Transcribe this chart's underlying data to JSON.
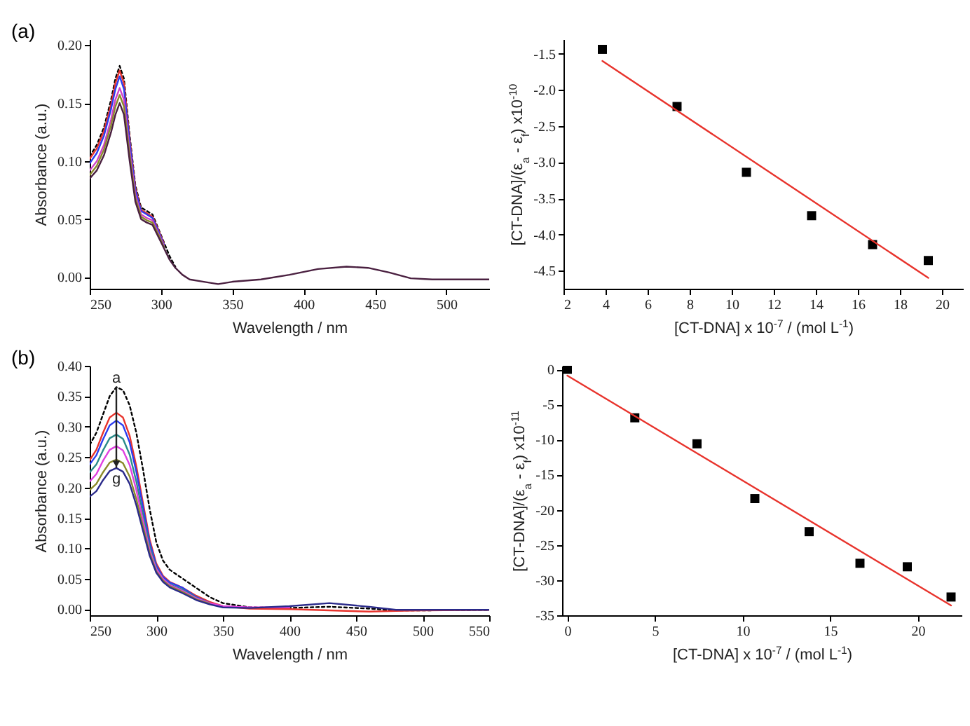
{
  "chart_data": [
    {
      "type": "line",
      "xlabel": "Wavelength / nm",
      "ylabel": "Absorbance (a.u.)",
      "annotations": [
        "(a)"
      ],
      "xlim": [
        250,
        530
      ],
      "xticks": [
        250,
        300,
        350,
        400,
        450,
        500
      ],
      "ylim": [
        -0.01,
        0.205
      ],
      "yticks": [
        {
          "value": 0,
          "label": "0.00"
        },
        {
          "value": 0.05,
          "label": "0.05"
        },
        {
          "value": 0.1,
          "label": "0.10"
        },
        {
          "value": 0.15,
          "label": "0.15"
        },
        {
          "value": 0.2,
          "label": "0.20"
        }
      ],
      "x": [
        250,
        255,
        260,
        265,
        268,
        271,
        274,
        278,
        282,
        286,
        290,
        294,
        298,
        302,
        306,
        310,
        315,
        320,
        330,
        340,
        350,
        370,
        390,
        410,
        430,
        445,
        460,
        475,
        490,
        510,
        530
      ],
      "series": [
        {
          "color": "#000000",
          "line_style": "dotted",
          "values": [
            0.104,
            0.114,
            0.129,
            0.153,
            0.171,
            0.182,
            0.171,
            0.122,
            0.079,
            0.06,
            0.057,
            0.054,
            0.042,
            0.03,
            0.018,
            0.009,
            null,
            null,
            null,
            null,
            null,
            null,
            null,
            null,
            null,
            null,
            null,
            null,
            null,
            null,
            null
          ]
        },
        {
          "color": "#e8332c",
          "values": [
            0.102,
            0.111,
            0.126,
            0.149,
            0.167,
            0.178,
            0.167,
            0.119,
            0.077,
            0.058,
            0.055,
            0.052,
            0.041,
            0.029,
            null,
            null,
            null,
            null,
            null,
            null,
            null,
            null,
            null,
            null,
            null,
            null,
            null,
            null,
            null,
            null,
            null
          ]
        },
        {
          "color": "#2b3cf0",
          "values": [
            0.098,
            0.107,
            0.122,
            0.145,
            0.162,
            0.173,
            0.162,
            0.116,
            0.075,
            0.057,
            0.054,
            0.051,
            0.04,
            0.028,
            null,
            null,
            null,
            null,
            null,
            null,
            null,
            null,
            null,
            null,
            null,
            null,
            null,
            null,
            null,
            null,
            null
          ]
        },
        {
          "color": "#d040c8",
          "values": [
            0.092,
            0.1,
            0.114,
            0.136,
            0.153,
            0.163,
            0.153,
            0.109,
            0.071,
            0.054,
            0.051,
            0.049,
            0.038,
            0.027,
            null,
            null,
            null,
            null,
            null,
            null,
            null,
            null,
            null,
            null,
            null,
            null,
            null,
            null,
            null,
            null,
            null
          ]
        },
        {
          "color": "#8a8a2a",
          "values": [
            0.088,
            0.096,
            0.11,
            0.131,
            0.147,
            0.157,
            0.147,
            0.105,
            0.068,
            0.052,
            0.049,
            0.047,
            0.037,
            0.026,
            null,
            null,
            null,
            null,
            null,
            null,
            null,
            null,
            null,
            null,
            null,
            null,
            null,
            null,
            null,
            null,
            null
          ]
        },
        {
          "color": "#4a2040",
          "values": [
            0.085,
            0.092,
            0.105,
            0.125,
            0.14,
            0.15,
            0.14,
            0.1,
            0.065,
            0.05,
            0.047,
            0.045,
            0.035,
            0.025,
            0.015,
            0.008,
            0.002,
            -0.002,
            -0.004,
            -0.006,
            -0.004,
            -0.002,
            0.002,
            0.007,
            0.009,
            0.008,
            0.004,
            -0.001,
            -0.002,
            -0.002,
            -0.002
          ]
        }
      ]
    },
    {
      "type": "scatter",
      "marker": "square",
      "xlabel": "[CT-DNA] x 10$^{-7}$ / (mol L$^{-1}$)",
      "ylabel": "[CT-DNA]/(ε$_{a}$ - ε$_{f}$) x10$^{-10}$",
      "xlim": [
        2,
        21
      ],
      "xticks": [
        2,
        4,
        6,
        8,
        10,
        12,
        14,
        16,
        18,
        20
      ],
      "ylim": [
        -4.75,
        -1.3
      ],
      "yticks": [
        -4.5,
        {
          "value": -4,
          "label": "-4.0"
        },
        -3.5,
        {
          "value": -3,
          "label": "-3.0"
        },
        -2.5,
        {
          "value": -2,
          "label": "-2.0"
        },
        -1.5
      ],
      "x": [
        3.85,
        7.4,
        10.7,
        13.8,
        16.7,
        19.35
      ],
      "series": [
        {
          "color": "#000000",
          "values": [
            -1.44,
            -2.23,
            -3.14,
            -3.74,
            -4.14,
            -4.36
          ]
        },
        {
          "type": "line",
          "marker": "none",
          "color": "#e8332c",
          "x": [
            3.85,
            19.35
          ],
          "values": [
            -1.6,
            -4.6
          ]
        }
      ]
    },
    {
      "type": "line",
      "xlabel": "Wavelength / nm",
      "ylabel": "Absorbance (a.u.)",
      "annotations": [
        "(b)",
        {
          "text": "a",
          "x": 270,
          "y": 0.365
        },
        {
          "text": "g",
          "x": 270,
          "y": 0.232
        }
      ],
      "xlim": [
        250,
        550
      ],
      "xticks": [
        250,
        300,
        350,
        400,
        450,
        500,
        550
      ],
      "ylim": [
        -0.01,
        0.4
      ],
      "yticks": [
        {
          "value": 0,
          "label": "0.00"
        },
        {
          "value": 0.05,
          "label": "0.05"
        },
        {
          "value": 0.1,
          "label": "0.10"
        },
        {
          "value": 0.15,
          "label": "0.15"
        },
        {
          "value": 0.2,
          "label": "0.20"
        },
        {
          "value": 0.25,
          "label": "0.25"
        },
        {
          "value": 0.3,
          "label": "0.30"
        },
        {
          "value": 0.35,
          "label": "0.35"
        },
        {
          "value": 0.4,
          "label": "0.40"
        }
      ],
      "x": [
        250,
        255,
        260,
        265,
        270,
        275,
        280,
        285,
        290,
        295,
        300,
        305,
        310,
        320,
        330,
        340,
        350,
        370,
        400,
        430,
        460,
        480,
        500,
        550
      ],
      "series": [
        {
          "color": "#000000",
          "line_style": "dotted",
          "values": [
            0.27,
            0.29,
            0.32,
            0.35,
            0.365,
            0.36,
            0.335,
            0.29,
            0.23,
            0.165,
            0.11,
            0.08,
            0.065,
            0.05,
            0.035,
            0.02,
            0.01,
            0.003,
            0.002,
            0.004,
            0.001,
            -0.002,
            -0.002,
            -0.001
          ]
        },
        {
          "color": "#e8332c",
          "values": [
            0.245,
            0.262,
            0.29,
            0.315,
            0.323,
            0.315,
            0.285,
            0.235,
            0.175,
            0.115,
            0.075,
            0.055,
            0.045,
            0.035,
            0.022,
            0.012,
            0.005,
            0.001,
            0,
            -0.002,
            -0.004,
            -0.003,
            -0.002,
            -0.001
          ]
        },
        {
          "color": "#2b3cf0",
          "values": [
            0.238,
            0.253,
            0.279,
            0.302,
            0.31,
            0.302,
            0.274,
            0.226,
            0.168,
            0.11,
            0.072,
            0.053,
            0.044,
            0.035,
            0.02,
            0.01,
            null,
            null,
            null,
            null,
            null,
            null,
            null,
            null
          ]
        },
        {
          "color": "#2a8a8a",
          "values": [
            0.225,
            0.238,
            0.261,
            0.281,
            0.287,
            0.28,
            0.254,
            0.21,
            0.156,
            0.103,
            0.068,
            0.05,
            0.041,
            0.032,
            0.019,
            0.01,
            null,
            null,
            null,
            null,
            null,
            null,
            null,
            null
          ]
        },
        {
          "color": "#e040e0",
          "values": [
            0.21,
            0.222,
            0.244,
            0.262,
            0.268,
            0.261,
            0.237,
            0.196,
            0.146,
            0.097,
            0.066,
            0.05,
            0.04,
            0.03,
            0.018,
            0.01,
            0.005,
            0.003,
            0.003,
            null,
            null,
            null,
            null,
            null
          ]
        },
        {
          "color": "#8a8a2a",
          "values": [
            0.196,
            0.206,
            0.225,
            0.241,
            0.246,
            0.24,
            0.218,
            0.181,
            0.136,
            0.092,
            0.062,
            0.047,
            0.038,
            0.028,
            0.016,
            0.009,
            null,
            null,
            null,
            null,
            null,
            null,
            null,
            null
          ]
        },
        {
          "color": "#2a2a8a",
          "values": [
            0.185,
            0.194,
            0.212,
            0.227,
            0.232,
            0.226,
            0.206,
            0.171,
            0.129,
            0.088,
            0.06,
            0.045,
            0.036,
            0.026,
            0.015,
            0.008,
            0.003,
            0.002,
            0.005,
            0.01,
            0.004,
            -0.001,
            -0.001,
            -0.001
          ]
        }
      ]
    },
    {
      "type": "scatter",
      "marker": "square",
      "xlabel": "[CT-DNA] x 10$^{-7}$ / (mol L$^{-1}$)",
      "ylabel": "[CT-DNA]/(ε$_{a}$ - ε$_{f}$) x10$^{-11}$",
      "xlim": [
        -0.3,
        22.5
      ],
      "xticks": [
        0,
        5,
        10,
        15,
        20
      ],
      "ylim": [
        -35,
        0.5
      ],
      "yticks": [
        -35,
        -30,
        -25,
        -20,
        -15,
        -10,
        -5,
        0
      ],
      "x": [
        0,
        3.85,
        7.4,
        10.7,
        13.8,
        16.7,
        19.4,
        21.9
      ],
      "series": [
        {
          "color": "#000000",
          "values": [
            0,
            -6.9,
            -10.6,
            -18.4,
            -23.1,
            -27.6,
            -28.1,
            -32.4
          ]
        },
        {
          "type": "line",
          "marker": "none",
          "color": "#e8332c",
          "x": [
            0,
            21.9
          ],
          "values": [
            -0.9,
            -33.6
          ]
        }
      ]
    }
  ]
}
